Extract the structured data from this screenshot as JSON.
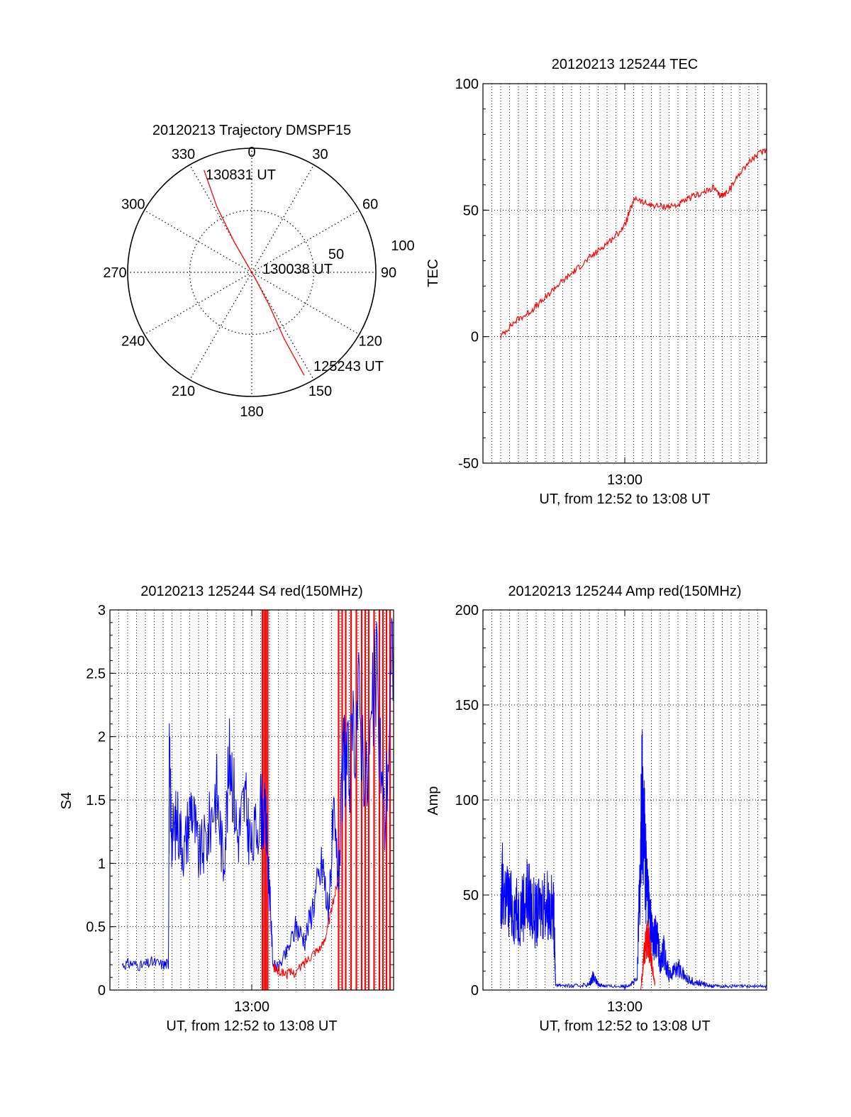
{
  "colors": {
    "red": "#ff0000",
    "blue": "#0000ff",
    "axis": "#000000",
    "grid": "#000000"
  },
  "chart_data": [
    {
      "id": "trajectory",
      "type": "polar",
      "title": "20120213 Trajectory DMSPF15",
      "azimuth_labels": [
        {
          "az": 0,
          "text": "0"
        },
        {
          "az": 30,
          "text": "30"
        },
        {
          "az": 60,
          "text": "60"
        },
        {
          "az": 90,
          "text": "90"
        },
        {
          "az": 120,
          "text": "120"
        },
        {
          "az": 150,
          "text": "150"
        },
        {
          "az": 180,
          "text": "180"
        },
        {
          "az": 210,
          "text": "210"
        },
        {
          "az": 240,
          "text": "240"
        },
        {
          "az": 270,
          "text": "270"
        },
        {
          "az": 300,
          "text": "300"
        },
        {
          "az": 330,
          "text": "330"
        }
      ],
      "radius_labels": [
        "50",
        "100"
      ],
      "radius_max": 100,
      "radius_rings": [
        50
      ],
      "track": [
        {
          "az": 335,
          "r": 91
        },
        {
          "az": 332,
          "r": 60
        },
        {
          "az": 330,
          "r": 28
        },
        {
          "az": 330,
          "r": 5
        },
        {
          "az": 150,
          "r": 5
        },
        {
          "az": 152,
          "r": 30
        },
        {
          "az": 154,
          "r": 60
        },
        {
          "az": 153,
          "r": 93
        }
      ],
      "time_labels": [
        "130831 UT",
        "130038 UT",
        "125243 UT"
      ],
      "color": "red"
    },
    {
      "id": "tec",
      "type": "line",
      "title": "20120213 125244 TEC",
      "ylabel": "TEC",
      "xlabel": "UT, from 12:52 to 13:08 UT",
      "xtick_label": "13:00",
      "xlim": [
        0,
        16
      ],
      "x_tick_minutes": 8,
      "ylim": [
        -50,
        100
      ],
      "yticks": [
        "-50",
        "0",
        "50",
        "100"
      ],
      "series": [
        {
          "color": "red",
          "x": [
            1,
            1.5,
            2,
            2.5,
            3,
            3.5,
            4,
            4.5,
            5,
            5.5,
            6,
            6.5,
            7,
            7.5,
            8,
            8.3,
            8.6,
            9,
            9.5,
            10,
            10.5,
            11,
            11.5,
            12,
            12.5,
            13,
            13.3,
            13.6,
            14,
            14.5,
            15,
            15.5,
            16
          ],
          "y": [
            0,
            4,
            7,
            9,
            12,
            15,
            19,
            22,
            25,
            28,
            31,
            34,
            37,
            40,
            44,
            50,
            55,
            53,
            52,
            51.5,
            51.5,
            52,
            54,
            56,
            57,
            59,
            56,
            56,
            59,
            65,
            69,
            72,
            74
          ]
        }
      ]
    },
    {
      "id": "s4",
      "type": "line",
      "title": "20120213 125244 S4 red(150MHz)",
      "ylabel": "S4",
      "xlabel": "UT, from 12:52 to 13:08 UT",
      "xtick_label": "13:00",
      "xlim": [
        0,
        16
      ],
      "x_tick_minutes": 8,
      "ylim": [
        0,
        3
      ],
      "yticks": [
        "0",
        "0.5",
        "1",
        "1.5",
        "2",
        "2.5",
        "3"
      ],
      "series": [
        {
          "color": "blue",
          "x": [
            0.7,
            1.2,
            1.8,
            2.4,
            3.0,
            3.3,
            3.35,
            3.5,
            3.8,
            4.2,
            4.6,
            5.0,
            5.5,
            6.0,
            6.4,
            6.8,
            7.2,
            7.6,
            8.0,
            8.5,
            8.8,
            9.0,
            9.2,
            9.5,
            10.0,
            10.5,
            11.0,
            11.5,
            12.0,
            12.3,
            12.6,
            12.9,
            13.2,
            13.5,
            14.0,
            14.5,
            15.0,
            15.5,
            16.0
          ],
          "y": [
            0.2,
            0.21,
            0.19,
            0.22,
            0.2,
            0.21,
            1.8,
            1.2,
            1.35,
            1.1,
            1.5,
            1.05,
            1.2,
            1.6,
            1.0,
            1.9,
            1.2,
            1.5,
            1.1,
            1.45,
            1.3,
            0.8,
            0.2,
            0.18,
            0.3,
            0.5,
            0.4,
            0.7,
            1.0,
            0.6,
            1.3,
            0.9,
            1.9,
            1.7,
            2.3,
            1.6,
            2.5,
            1.3,
            2.8
          ]
        },
        {
          "color": "red",
          "x": [
            9.2,
            9.5,
            10.0,
            10.5,
            11.0,
            11.5,
            12.0,
            12.3,
            12.6,
            12.9
          ],
          "y": [
            0.18,
            0.15,
            0.13,
            0.14,
            0.22,
            0.3,
            0.35,
            0.5,
            0.7,
            0.9
          ]
        }
      ],
      "red_spikes": [
        8.6,
        8.7,
        8.8,
        8.9,
        12.9,
        13.1,
        13.3,
        13.6,
        13.9,
        14.2,
        14.4,
        14.6,
        14.9,
        15.2,
        15.4,
        15.6,
        15.8
      ]
    },
    {
      "id": "amp",
      "type": "line",
      "title": "20120213 125244 Amp red(150MHz)",
      "ylabel": "Amp",
      "xlabel": "UT, from 12:52 to 13:08 UT",
      "xtick_label": "13:00",
      "xlim": [
        0,
        16
      ],
      "x_tick_minutes": 8,
      "ylim": [
        0,
        200
      ],
      "yticks": [
        "0",
        "50",
        "100",
        "150",
        "200"
      ],
      "series": [
        {
          "color": "blue",
          "x": [
            1.0,
            1.1,
            1.5,
            2.0,
            2.5,
            3.0,
            3.5,
            4.0,
            4.1,
            5.0,
            6.0,
            6.2,
            6.5,
            7.0,
            8.0,
            8.7,
            8.9,
            9.0,
            9.2,
            9.4,
            9.6,
            9.8,
            10.0,
            10.2,
            10.5,
            11.0,
            11.5,
            12.0,
            12.5,
            13.0,
            14.0,
            15.0,
            16.0
          ],
          "y": [
            35,
            55,
            45,
            40,
            50,
            38,
            48,
            40,
            3,
            2,
            3,
            7,
            3,
            2,
            2,
            5,
            80,
            105,
            60,
            40,
            25,
            30,
            15,
            20,
            8,
            12,
            6,
            4,
            3,
            2,
            2,
            2,
            2
          ]
        },
        {
          "color": "red",
          "x": [
            1.0,
            4.0,
            8.9,
            9.1,
            9.3,
            9.5,
            9.7
          ],
          "y": [
            0,
            0,
            0,
            20,
            28,
            15,
            3
          ]
        }
      ]
    }
  ]
}
